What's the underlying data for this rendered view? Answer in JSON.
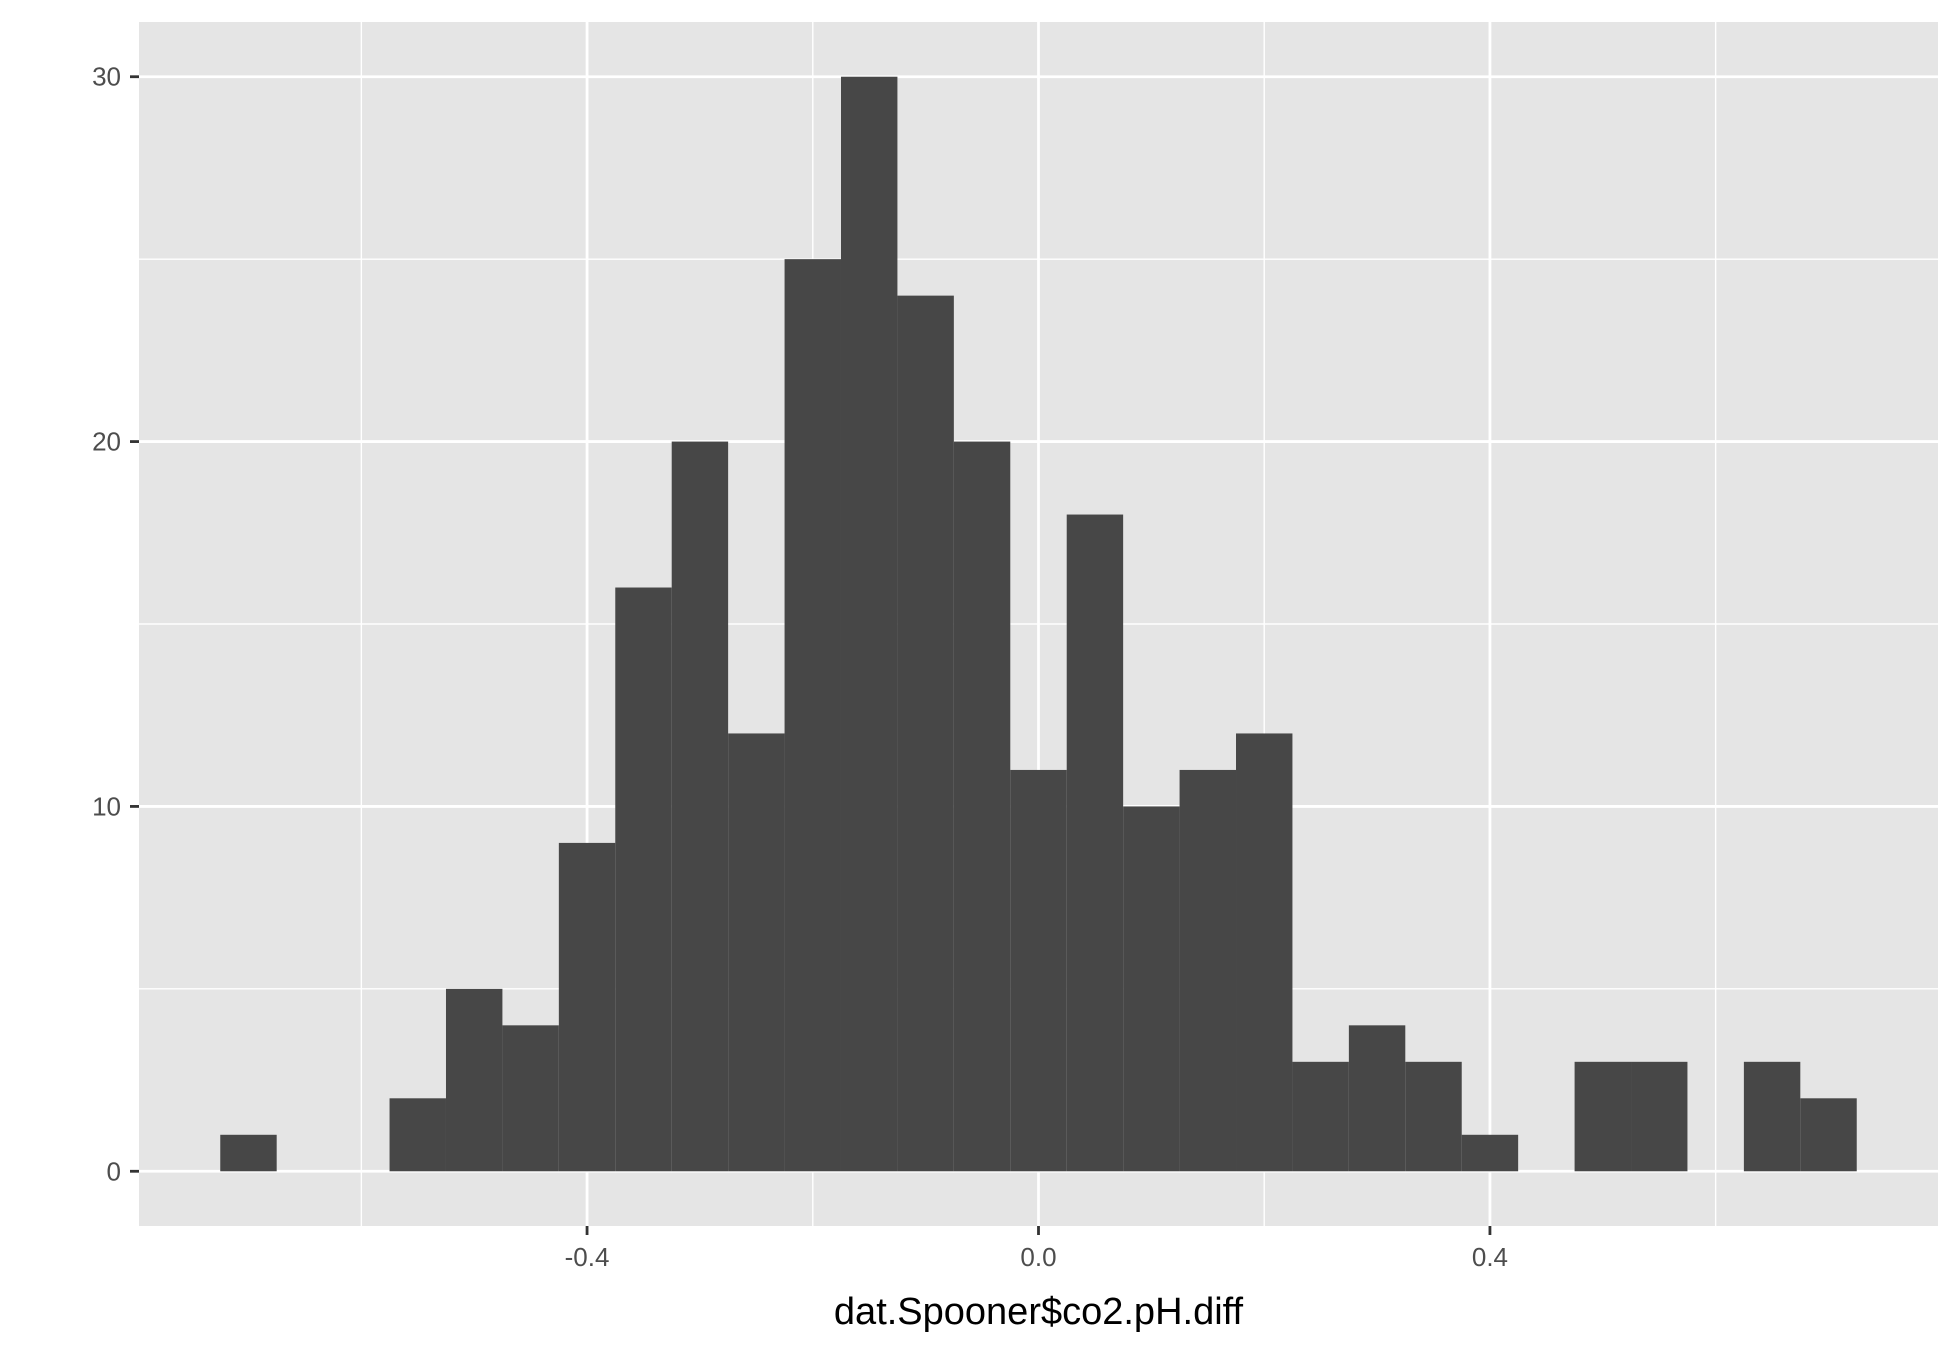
{
  "chart_data": {
    "type": "bar",
    "xlabel": "dat.Spooner$co2.pH.diff",
    "ylabel": "",
    "xlim": [
      -0.797,
      0.797
    ],
    "ylim": [
      -1.5,
      31.5
    ],
    "x_ticks": [
      -0.4,
      0.0,
      0.4
    ],
    "x_tick_labels": [
      "-0.4",
      "0.0",
      "0.4"
    ],
    "y_ticks": [
      0,
      10,
      20,
      30
    ],
    "y_tick_labels": [
      "0",
      "10",
      "20",
      "30"
    ],
    "grid": true,
    "bin_width": 0.05,
    "bins": [
      {
        "x0": -0.725,
        "x1": -0.675,
        "count": 1
      },
      {
        "x0": -0.575,
        "x1": -0.525,
        "count": 2
      },
      {
        "x0": -0.525,
        "x1": -0.475,
        "count": 5
      },
      {
        "x0": -0.475,
        "x1": -0.425,
        "count": 4
      },
      {
        "x0": -0.425,
        "x1": -0.375,
        "count": 9
      },
      {
        "x0": -0.375,
        "x1": -0.325,
        "count": 16
      },
      {
        "x0": -0.325,
        "x1": -0.275,
        "count": 20
      },
      {
        "x0": -0.275,
        "x1": -0.225,
        "count": 12
      },
      {
        "x0": -0.225,
        "x1": -0.175,
        "count": 25
      },
      {
        "x0": -0.175,
        "x1": -0.125,
        "count": 30
      },
      {
        "x0": -0.125,
        "x1": -0.075,
        "count": 24
      },
      {
        "x0": -0.075,
        "x1": -0.025,
        "count": 20
      },
      {
        "x0": -0.025,
        "x1": 0.025,
        "count": 11
      },
      {
        "x0": 0.025,
        "x1": 0.075,
        "count": 18
      },
      {
        "x0": 0.075,
        "x1": 0.125,
        "count": 10
      },
      {
        "x0": 0.125,
        "x1": 0.175,
        "count": 11
      },
      {
        "x0": 0.175,
        "x1": 0.225,
        "count": 12
      },
      {
        "x0": 0.225,
        "x1": 0.275,
        "count": 3
      },
      {
        "x0": 0.275,
        "x1": 0.325,
        "count": 4
      },
      {
        "x0": 0.325,
        "x1": 0.375,
        "count": 3
      },
      {
        "x0": 0.375,
        "x1": 0.425,
        "count": 1
      },
      {
        "x0": 0.475,
        "x1": 0.525,
        "count": 3
      },
      {
        "x0": 0.525,
        "x1": 0.575,
        "count": 3
      },
      {
        "x0": 0.625,
        "x1": 0.675,
        "count": 3
      },
      {
        "x0": 0.675,
        "x1": 0.725,
        "count": 2
      }
    ],
    "colors": {
      "panel": "#e5e5e5",
      "grid": "#ffffff",
      "bar": "#474747",
      "tick": "#333333"
    }
  }
}
